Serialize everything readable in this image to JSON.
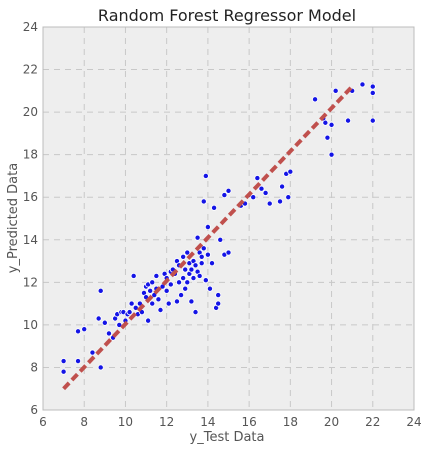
{
  "chart_data": {
    "type": "scatter",
    "title": "Random Forest Regressor Model",
    "xlabel": "y_Test Data",
    "ylabel": "y_Predicted Data",
    "xlim": [
      6,
      24
    ],
    "ylim": [
      6,
      24
    ],
    "xticks": [
      6,
      8,
      10,
      12,
      14,
      16,
      18,
      20,
      22,
      24
    ],
    "yticks": [
      6,
      8,
      10,
      12,
      14,
      16,
      18,
      20,
      22,
      24
    ],
    "grid": true,
    "colors": {
      "background": "#eeeeee",
      "grid": "#c8c8c8",
      "points": "#1414e6",
      "point_edge": "#ffffff",
      "fit_line": "#c0504d",
      "frame": "#bcbcbc"
    },
    "fit_line": {
      "x": [
        7.0,
        21.0
      ],
      "y": [
        7.0,
        21.2
      ]
    },
    "points": [
      [
        7.0,
        8.3
      ],
      [
        7.0,
        7.8
      ],
      [
        7.7,
        8.3
      ],
      [
        7.7,
        9.7
      ],
      [
        8.0,
        9.8
      ],
      [
        8.4,
        8.7
      ],
      [
        8.7,
        10.3
      ],
      [
        8.8,
        11.6
      ],
      [
        8.8,
        8.0
      ],
      [
        9.0,
        10.1
      ],
      [
        9.2,
        9.6
      ],
      [
        9.4,
        9.4
      ],
      [
        9.5,
        10.3
      ],
      [
        9.6,
        10.5
      ],
      [
        9.7,
        10.0
      ],
      [
        9.8,
        10.6
      ],
      [
        9.9,
        10.6
      ],
      [
        10.0,
        10.2
      ],
      [
        10.1,
        10.5
      ],
      [
        10.2,
        10.6
      ],
      [
        10.3,
        11.0
      ],
      [
        10.4,
        12.3
      ],
      [
        10.5,
        10.8
      ],
      [
        10.6,
        10.5
      ],
      [
        10.7,
        11.0
      ],
      [
        10.8,
        10.6
      ],
      [
        10.9,
        11.5
      ],
      [
        11.0,
        11.8
      ],
      [
        11.0,
        11.3
      ],
      [
        11.1,
        11.9
      ],
      [
        11.1,
        10.2
      ],
      [
        11.2,
        11.6
      ],
      [
        11.3,
        12.0
      ],
      [
        11.3,
        11.0
      ],
      [
        11.4,
        11.4
      ],
      [
        11.5,
        11.7
      ],
      [
        11.5,
        12.3
      ],
      [
        11.6,
        11.2
      ],
      [
        11.7,
        10.7
      ],
      [
        11.8,
        11.8
      ],
      [
        11.9,
        12.4
      ],
      [
        12.0,
        11.6
      ],
      [
        12.0,
        12.2
      ],
      [
        12.1,
        11.0
      ],
      [
        12.2,
        12.5
      ],
      [
        12.2,
        11.9
      ],
      [
        12.3,
        12.6
      ],
      [
        12.4,
        12.4
      ],
      [
        12.5,
        11.1
      ],
      [
        12.5,
        13.0
      ],
      [
        12.6,
        12.0
      ],
      [
        12.6,
        12.8
      ],
      [
        12.7,
        11.4
      ],
      [
        12.8,
        13.2
      ],
      [
        12.8,
        12.2
      ],
      [
        12.9,
        12.6
      ],
      [
        12.9,
        11.7
      ],
      [
        13.0,
        13.4
      ],
      [
        13.0,
        12.0
      ],
      [
        13.1,
        12.9
      ],
      [
        13.1,
        12.4
      ],
      [
        13.2,
        12.6
      ],
      [
        13.2,
        11.1
      ],
      [
        13.3,
        12.2
      ],
      [
        13.3,
        13.0
      ],
      [
        13.4,
        12.8
      ],
      [
        13.4,
        10.6
      ],
      [
        13.5,
        12.5
      ],
      [
        13.5,
        14.1
      ],
      [
        13.6,
        12.3
      ],
      [
        13.6,
        13.4
      ],
      [
        13.7,
        13.2
      ],
      [
        13.7,
        12.9
      ],
      [
        13.8,
        13.6
      ],
      [
        13.8,
        15.8
      ],
      [
        13.9,
        17.0
      ],
      [
        13.9,
        12.1
      ],
      [
        14.0,
        13.3
      ],
      [
        14.0,
        14.6
      ],
      [
        14.1,
        11.7
      ],
      [
        14.2,
        12.9
      ],
      [
        14.3,
        15.5
      ],
      [
        14.4,
        10.8
      ],
      [
        14.5,
        11.4
      ],
      [
        14.5,
        11.0
      ],
      [
        14.6,
        14.0
      ],
      [
        14.8,
        16.1
      ],
      [
        15.0,
        16.3
      ],
      [
        14.8,
        13.3
      ],
      [
        15.0,
        13.4
      ],
      [
        15.6,
        15.6
      ],
      [
        15.8,
        15.7
      ],
      [
        16.0,
        16.1
      ],
      [
        16.2,
        16.0
      ],
      [
        16.4,
        16.9
      ],
      [
        16.6,
        16.4
      ],
      [
        16.8,
        16.2
      ],
      [
        17.0,
        15.7
      ],
      [
        17.5,
        15.8
      ],
      [
        17.6,
        16.5
      ],
      [
        17.8,
        17.1
      ],
      [
        17.9,
        16.0
      ],
      [
        18.0,
        17.2
      ],
      [
        19.2,
        20.6
      ],
      [
        19.6,
        19.7
      ],
      [
        19.8,
        18.8
      ],
      [
        20.0,
        19.4
      ],
      [
        20.0,
        18.0
      ],
      [
        20.2,
        21.0
      ],
      [
        20.8,
        19.6
      ],
      [
        21.0,
        21.0
      ],
      [
        21.5,
        21.3
      ],
      [
        22.0,
        21.2
      ],
      [
        22.0,
        20.9
      ],
      [
        22.0,
        19.6
      ],
      [
        19.7,
        19.5
      ]
    ]
  }
}
